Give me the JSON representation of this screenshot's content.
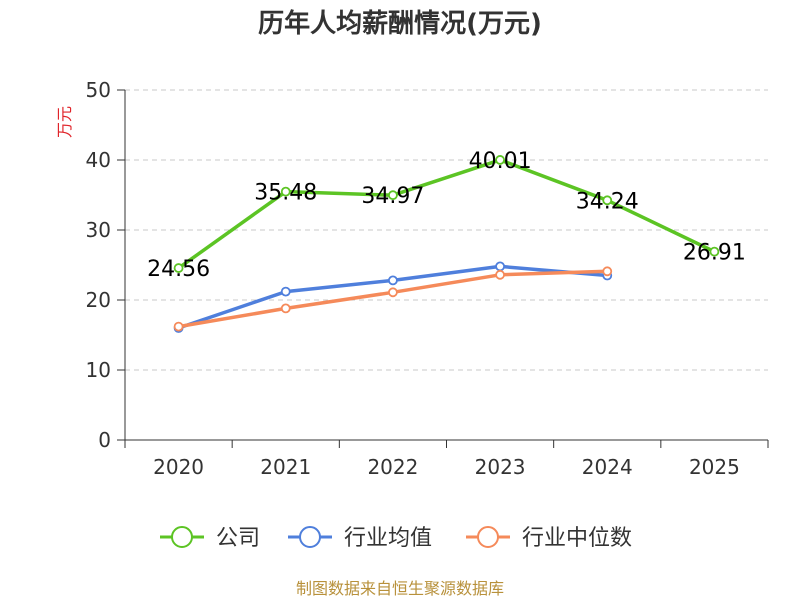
{
  "chart_data": {
    "type": "line",
    "title": "历年人均薪酬情况(万元)",
    "ylabel": "万元",
    "xlabel": "",
    "categories": [
      "2020",
      "2021",
      "2022",
      "2023",
      "2024",
      "2025"
    ],
    "ylim": [
      0,
      50
    ],
    "yticks": [
      "0",
      "10",
      "20",
      "30",
      "40",
      "50"
    ],
    "grid": "horizontal dashed",
    "legend_position": "bottom",
    "series": [
      {
        "name": "公司",
        "color": "#5cc424",
        "values": [
          24.56,
          35.48,
          34.97,
          40.01,
          34.24,
          26.91
        ],
        "show_labels": true
      },
      {
        "name": "行业均值",
        "color": "#4f7fdc",
        "values": [
          16.0,
          21.2,
          22.8,
          24.8,
          23.5,
          null
        ],
        "show_labels": false
      },
      {
        "name": "行业中位数",
        "color": "#f58a5a",
        "values": [
          16.2,
          18.8,
          21.1,
          23.6,
          24.1,
          null
        ],
        "show_labels": false
      }
    ]
  },
  "source_note": "制图数据来自恒生聚源数据库"
}
